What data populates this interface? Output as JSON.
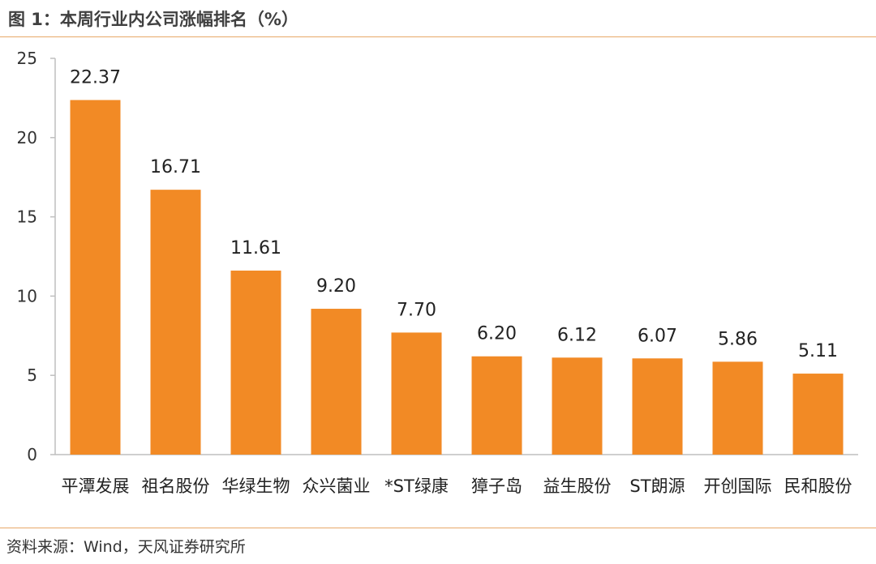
{
  "figure": {
    "title": "图 1：本周行业内公司涨幅排名（%）",
    "source": "资料来源：Wind，天风证券研究所"
  },
  "colors": {
    "bar": "#f28a25",
    "axis": "#bfbfbf",
    "rule": "#e8a868"
  },
  "chart_data": {
    "type": "bar",
    "categories": [
      "平潭发展",
      "祖名股份",
      "华绿生物",
      "众兴菌业",
      "*ST绿康",
      "獐子岛",
      "益生股份",
      "ST朗源",
      "开创国际",
      "民和股份"
    ],
    "values": [
      22.37,
      16.71,
      11.61,
      9.2,
      7.7,
      6.2,
      6.12,
      6.07,
      5.86,
      5.11
    ],
    "data_labels": [
      "22.37",
      "16.71",
      "11.61",
      "9.20",
      "7.70",
      "6.20",
      "6.12",
      "6.07",
      "5.86",
      "5.11"
    ],
    "ylim": [
      0,
      25
    ],
    "yticks": [
      0,
      5,
      10,
      15,
      20,
      25
    ],
    "grid": false,
    "legend": "none"
  }
}
